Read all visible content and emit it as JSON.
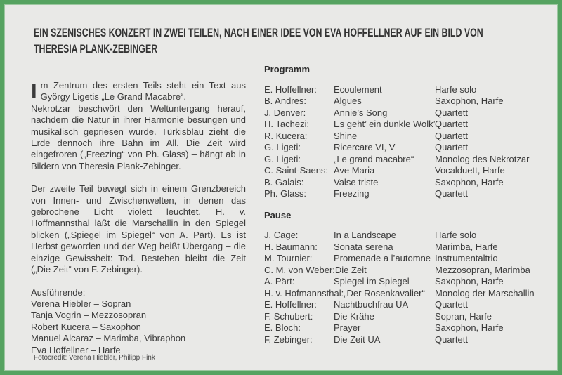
{
  "page": {
    "title": "EIN SZENISCHES KONZERT IN ZWEI TEILEN, NACH EINER IDEE VON EVA HOFFELLNER AUF EIN BILD VON THERESIA PLANK-ZEBINGER",
    "background_color": "#e9e9e7",
    "border_color": "#56a361",
    "text_color": "#3b3b3b"
  },
  "left_column": {
    "paragraph1": {
      "dropcap": "I",
      "lead": "m Zentrum des ersten Teils steht ein Text aus György Ligetis „Le Grand Macabre“.",
      "body": "Nekrotzar beschwört den Weltuntergang herauf, nachdem die Natur in ihrer Harmonie besungen und musikalisch gepriesen wurde. Türkisblau zieht die Erde dennoch ihre Bahn im All. Die Zeit wird eingefroren („Freezing“ von Ph. Glass) – hängt ab in Bildern von Theresia Plank-Zebinger."
    },
    "paragraph2": "Der zweite Teil bewegt sich in einem Grenzbereich von Innen- und Zwischenwelten, in denen das gebrochene Licht violett leuchtet. H. v. Hoffmannsthal läßt die Marschallin in den Spiegel blicken („Spiegel im Spiegel“ von A. Pärt). Es ist Herbst geworden und der Weg heißt Übergang – die einzige Gewissheit: Tod. Bestehen bleibt die Zeit („Die Zeit“ von F. Zebinger).",
    "performers_heading": "Ausführende:",
    "performers": [
      "Verena Hiebler – Sopran",
      "Tanja Vogrin – Mezzosopran",
      "Robert Kucera – Saxophon",
      "Manuel Alcaraz – Marimba, Vibraphon",
      "Eva Hoffellner – Harfe"
    ]
  },
  "program": {
    "heading": "Programm",
    "rows": [
      [
        "E. Hoffellner:",
        "Ecoulement",
        "Harfe solo"
      ],
      [
        "B. Andres:",
        "Algues",
        "Saxophon, Harfe"
      ],
      [
        "J. Denver:",
        "Annie’s Song",
        "Quartett"
      ],
      [
        "H. Tachezi:",
        "Es geht’ ein dunkle Wolk’",
        "Quartett"
      ],
      [
        "R. Kucera:",
        "Shine",
        "Quartett"
      ],
      [
        "G. Ligeti:",
        "Ricercare VI, V",
        "Quartett"
      ],
      [
        "G. Ligeti:",
        "„Le grand macabre“",
        "Monolog des Nekrotzar"
      ],
      [
        "C. Saint-Saens:",
        "Ave Maria",
        "Vocalduett, Harfe"
      ],
      [
        "B. Galais:",
        "Valse triste",
        "Saxophon, Harfe"
      ],
      [
        "Ph. Glass:",
        "Freezing",
        "Quartett"
      ]
    ],
    "pause_heading": "Pause",
    "pause_rows": [
      [
        "J. Cage:",
        "In a Landscape",
        "Harfe solo"
      ],
      [
        "H. Baumann:",
        "Sonata serena",
        "Marimba, Harfe"
      ],
      [
        "M. Tournier:",
        "Promenade a l’automne",
        "Instrumentaltrio"
      ],
      [
        "C. M. von Weber:",
        "Die Zeit",
        "Mezzosopran, Marimba"
      ],
      [
        "A. Pärt:",
        "Spiegel im Spiegel",
        "Saxophon, Harfe"
      ],
      [
        "H. v. Hofmannsthal:",
        "„Der Rosenkavalier“",
        "Monolog der Marschallin"
      ],
      [
        "E. Hoffellner:",
        "Nachtbuchfrau UA",
        "Quartett"
      ],
      [
        "F. Schubert:",
        "Die Krähe",
        "Sopran, Harfe"
      ],
      [
        "E. Bloch:",
        "Prayer",
        "Saxophon, Harfe"
      ],
      [
        "F. Zebinger:",
        "Die Zeit UA",
        "Quartett"
      ]
    ]
  },
  "footer": {
    "credit": "Fotocredit: Verena Hiebler, Philipp Fink"
  }
}
